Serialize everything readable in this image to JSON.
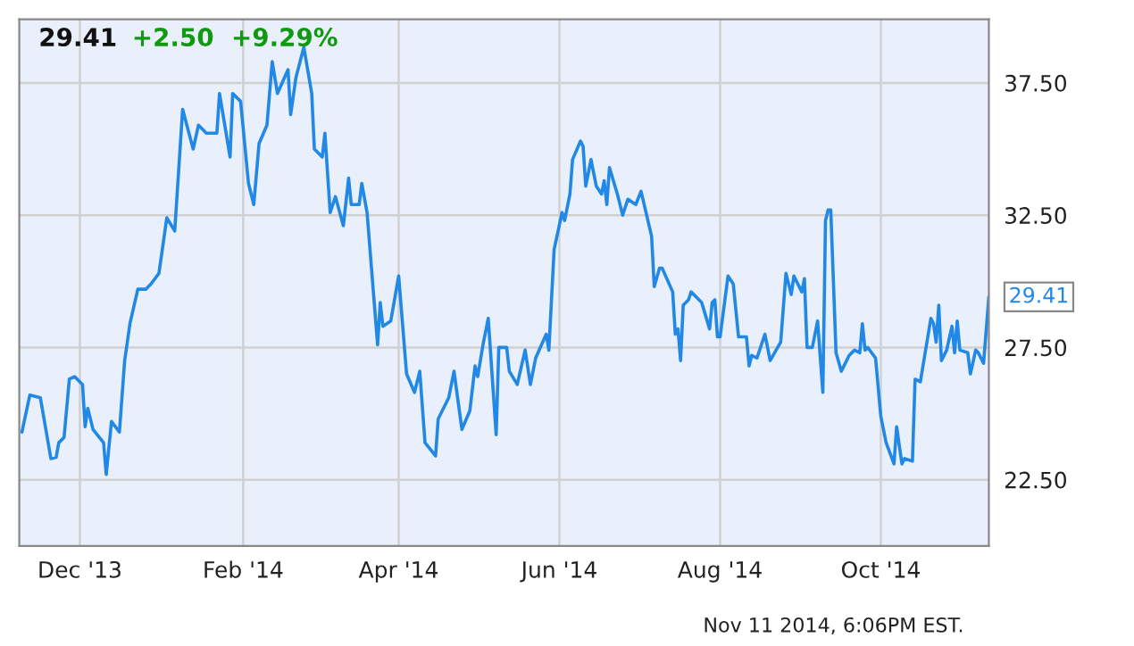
{
  "chart_data": {
    "type": "line",
    "title": "29.41",
    "subtitle": "+2.50  +9.29%",
    "x": [
      "2013-11-09",
      "2013-11-12",
      "2013-11-16",
      "2013-11-20",
      "2013-11-22",
      "2013-11-23",
      "2013-11-25",
      "2013-11-27",
      "2013-11-29",
      "2013-12-02",
      "2013-12-03",
      "2013-12-04",
      "2013-12-06",
      "2013-12-10",
      "2013-12-11",
      "2013-12-13",
      "2013-12-16",
      "2013-12-18",
      "2013-12-20",
      "2013-12-23",
      "2013-12-26",
      "2013-12-28",
      "2013-12-31",
      "2014-01-03",
      "2014-01-06",
      "2014-01-09",
      "2014-01-13",
      "2014-01-15",
      "2014-01-18",
      "2014-01-22",
      "2014-01-23",
      "2014-01-27",
      "2014-01-28",
      "2014-01-31",
      "2014-02-03",
      "2014-02-05",
      "2014-02-07",
      "2014-02-10",
      "2014-02-12",
      "2014-02-14",
      "2014-02-18",
      "2014-02-19",
      "2014-02-21",
      "2014-02-24",
      "2014-02-27",
      "2014-02-28",
      "2014-03-03",
      "2014-03-04",
      "2014-03-06",
      "2014-03-08",
      "2014-03-11",
      "2014-03-13",
      "2014-03-14",
      "2014-03-17",
      "2014-03-18",
      "2014-03-20",
      "2014-03-22",
      "2014-03-24",
      "2014-03-25",
      "2014-03-26",
      "2014-03-29",
      "2014-04-01",
      "2014-04-04",
      "2014-04-07",
      "2014-04-09",
      "2014-04-11",
      "2014-04-15",
      "2014-04-16",
      "2014-04-20",
      "2014-04-22",
      "2014-04-25",
      "2014-04-28",
      "2014-04-30",
      "2014-05-01",
      "2014-05-03",
      "2014-05-05",
      "2014-05-08",
      "2014-05-09",
      "2014-05-12",
      "2014-05-13",
      "2014-05-16",
      "2014-05-19",
      "2014-05-21",
      "2014-05-23",
      "2014-05-27",
      "2014-05-28",
      "2014-05-30",
      "2014-06-02",
      "2014-06-03",
      "2014-06-05",
      "2014-06-06",
      "2014-06-09",
      "2014-06-10",
      "2014-06-11",
      "2014-06-13",
      "2014-06-15",
      "2014-06-17",
      "2014-06-18",
      "2014-06-19",
      "2014-06-20",
      "2014-06-23",
      "2014-06-25",
      "2014-06-27",
      "2014-06-30",
      "2014-07-02",
      "2014-07-06",
      "2014-07-07",
      "2014-07-09",
      "2014-07-10",
      "2014-07-14",
      "2014-07-15",
      "2014-07-16",
      "2014-07-17",
      "2014-07-18",
      "2014-07-20",
      "2014-07-21",
      "2014-07-23",
      "2014-07-25",
      "2014-07-28",
      "2014-07-29",
      "2014-07-30",
      "2014-07-31",
      "2014-08-01",
      "2014-08-04",
      "2014-08-06",
      "2014-08-08",
      "2014-08-11",
      "2014-08-12",
      "2014-08-13",
      "2014-08-15",
      "2014-08-18",
      "2014-08-20",
      "2014-08-24",
      "2014-08-26",
      "2014-08-28",
      "2014-08-29",
      "2014-09-01",
      "2014-09-02",
      "2014-09-03",
      "2014-09-05",
      "2014-09-07",
      "2014-09-09",
      "2014-09-10",
      "2014-09-11",
      "2014-09-12",
      "2014-09-14",
      "2014-09-16",
      "2014-09-19",
      "2014-09-21",
      "2014-09-23",
      "2014-09-24",
      "2014-09-25",
      "2014-09-26",
      "2014-09-29",
      "2014-10-01",
      "2014-10-03",
      "2014-10-06",
      "2014-10-07",
      "2014-10-09",
      "2014-10-10",
      "2014-10-13",
      "2014-10-14",
      "2014-10-16",
      "2014-10-20",
      "2014-10-21",
      "2014-10-22",
      "2014-10-23",
      "2014-10-24",
      "2014-10-26",
      "2014-10-28",
      "2014-10-29",
      "2014-10-30",
      "2014-10-31",
      "2014-11-03",
      "2014-11-04",
      "2014-11-06",
      "2014-11-07",
      "2014-11-09",
      "2014-11-11"
    ],
    "series": [
      {
        "color": "#2188e6",
        "values": [
          24.3,
          25.7,
          25.6,
          23.3,
          23.35,
          23.9,
          24.1,
          26.3,
          26.4,
          26.1,
          24.5,
          25.2,
          24.4,
          23.9,
          22.7,
          24.7,
          24.3,
          27.0,
          28.4,
          29.7,
          29.7,
          29.9,
          30.3,
          32.4,
          31.9,
          36.5,
          35.0,
          35.9,
          35.6,
          35.6,
          37.1,
          34.7,
          37.1,
          36.8,
          33.7,
          32.9,
          35.2,
          35.9,
          38.3,
          37.1,
          38.0,
          36.3,
          37.7,
          38.85,
          37.1,
          35.0,
          34.7,
          35.6,
          32.6,
          33.2,
          32.1,
          33.9,
          32.9,
          32.9,
          33.7,
          32.6,
          30.1,
          27.6,
          29.2,
          28.3,
          28.5,
          30.2,
          26.5,
          25.8,
          26.6,
          23.9,
          23.4,
          24.8,
          25.6,
          26.6,
          24.4,
          25.1,
          26.8,
          26.4,
          27.6,
          28.6,
          24.2,
          27.5,
          27.5,
          26.6,
          26.1,
          27.4,
          26.1,
          27.1,
          28.0,
          27.4,
          31.2,
          32.6,
          32.3,
          33.3,
          34.6,
          35.3,
          35.1,
          33.6,
          34.6,
          33.6,
          33.3,
          33.8,
          32.9,
          34.3,
          33.3,
          32.5,
          33.1,
          32.9,
          33.4,
          31.7,
          29.8,
          30.5,
          30.5,
          29.6,
          28.0,
          28.2,
          27.0,
          29.1,
          29.3,
          29.6,
          29.4,
          29.2,
          28.2,
          29.2,
          29.3,
          27.9,
          27.9,
          30.2,
          29.9,
          27.9,
          27.9,
          26.8,
          27.2,
          27.1,
          28.0,
          27.0,
          27.7,
          30.3,
          29.5,
          30.2,
          29.6,
          30.1,
          27.5,
          27.5,
          28.5,
          25.8,
          32.3,
          32.7,
          32.7,
          27.3,
          26.6,
          27.2,
          27.4,
          27.3,
          28.4,
          27.4,
          27.5,
          27.1,
          24.9,
          23.9,
          23.1,
          24.5,
          23.1,
          23.3,
          23.2,
          26.3,
          26.2,
          28.6,
          28.4,
          27.7,
          29.1,
          27.0,
          27.4,
          28.3,
          27.3,
          28.5,
          27.4,
          27.3,
          26.5,
          27.4,
          27.3,
          26.9,
          29.41
        ]
      }
    ],
    "xlim": [
      "2013-11-08",
      "2014-11-11"
    ],
    "xticks": [
      {
        "value": "2013-12-01",
        "label": "Dec '13"
      },
      {
        "value": "2014-02-01",
        "label": "Feb '14"
      },
      {
        "value": "2014-04-01",
        "label": "Apr '14"
      },
      {
        "value": "2014-06-01",
        "label": "Jun '14"
      },
      {
        "value": "2014-08-01",
        "label": "Aug '14"
      },
      {
        "value": "2014-10-01",
        "label": "Oct '14"
      }
    ],
    "ylim": [
      20.0,
      39.9
    ],
    "yticks": [
      {
        "value": 22.5,
        "label": "22.50"
      },
      {
        "value": 27.5,
        "label": "27.50"
      },
      {
        "value": 32.5,
        "label": "32.50"
      },
      {
        "value": 37.5,
        "label": "37.50"
      }
    ],
    "grid": true,
    "marker": "none",
    "line_style": "solid",
    "annotations": [
      {
        "text": "29.41",
        "x": "2014-11-11",
        "y": 29.41
      },
      "Nov 11 2014, 6:06PM EST."
    ]
  }
}
